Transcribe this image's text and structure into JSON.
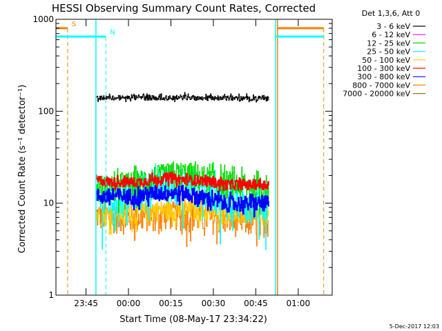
{
  "chart_data": {
    "type": "line",
    "title": "HESSI Observing Summary Count Rates, Corrected",
    "xlabel": "Start Time (08-May-17 23:34:22)",
    "ylabel": "Corrected Count Rate (s⁻¹ detector⁻¹)",
    "yscale": "log",
    "ylim": [
      1,
      1000
    ],
    "xlim": [
      "23:34:22",
      "01:12:00"
    ],
    "x_ticks": [
      "23:45",
      "00:00",
      "00:15",
      "00:30",
      "00:45",
      "01:00"
    ],
    "y_ticks": [
      "1",
      "10",
      "100",
      "1000"
    ],
    "legend_title": "Det 1,3,6, Att 0",
    "legend_position": "outside-right",
    "footer_date": "5-Dec-2017 12:03",
    "data_start": "23:48:30",
    "data_end": "00:49:30",
    "series": [
      {
        "name": "3 - 6 keV",
        "color": "#000000",
        "start_value": 28,
        "values": [
          140,
          140,
          140,
          140,
          140,
          140,
          140,
          140,
          140,
          139,
          138,
          138,
          137
        ]
      },
      {
        "name": "6 - 12 keV",
        "color": "#ff00ff",
        "values": []
      },
      {
        "name": "12 - 25 keV",
        "color": "#00dd00",
        "values": [
          15,
          15,
          16,
          17,
          19,
          20,
          21,
          20,
          18,
          17,
          16,
          15,
          15
        ]
      },
      {
        "name": "25 - 50 keV",
        "color": "#00ffff",
        "values": [
          11,
          11,
          12,
          14,
          16,
          17,
          17,
          16,
          14,
          12,
          11,
          11,
          11
        ]
      },
      {
        "name": "50 - 100 keV",
        "color": "#ffcc00",
        "values": [
          7.5,
          7.5,
          8,
          8,
          8.5,
          8.5,
          8.5,
          8.5,
          8,
          8,
          7.5,
          7.5,
          7.5
        ]
      },
      {
        "name": "100 - 300 keV",
        "color": "#ff0000",
        "values": [
          18,
          17,
          17,
          17,
          18,
          19,
          18,
          18,
          17,
          16,
          16,
          16,
          16
        ]
      },
      {
        "name": "300 - 800 keV",
        "color": "#0000ff",
        "values": [
          12,
          12,
          12,
          12,
          13,
          13,
          13,
          12,
          11,
          10,
          10,
          10,
          10
        ]
      },
      {
        "name": "800 - 7000 keV",
        "color": "#ff7f00",
        "values": [
          7.5,
          7.2,
          7,
          7.2,
          7.5,
          7.8,
          7.5,
          7.2,
          7,
          6.8,
          6.5,
          6.5,
          6.5
        ]
      },
      {
        "name": "7000 - 20000 keV",
        "color": "#808000",
        "values": []
      }
    ],
    "annotations": [
      {
        "label": "S",
        "color": "#ff7f00",
        "value": 800,
        "x_start": "23:34:22",
        "x_end": "23:38:30",
        "dashed_line_at": "23:38:30"
      },
      {
        "label": "N",
        "color": "#00ffff",
        "value": 650,
        "x_start": "23:34:22",
        "x_end": "23:52:00",
        "dashed_line_at": "23:52:00"
      },
      {
        "label": "",
        "color": "#ff7f00",
        "value": 800,
        "x_start": "00:52:30",
        "x_end": "01:09:00",
        "dashed_line_at": "01:09:00"
      },
      {
        "label": "",
        "color": "#00ffff",
        "value": 650,
        "x_start": "00:52:00",
        "x_end": "01:09:00",
        "dashed_line_at": ""
      }
    ],
    "vertical_lines": [
      {
        "at": "23:48:30",
        "color": "#00ffff"
      },
      {
        "at": "00:52:00",
        "color": "#00ffff"
      },
      {
        "at": "00:52:40",
        "color": "#ff7f00"
      }
    ]
  }
}
